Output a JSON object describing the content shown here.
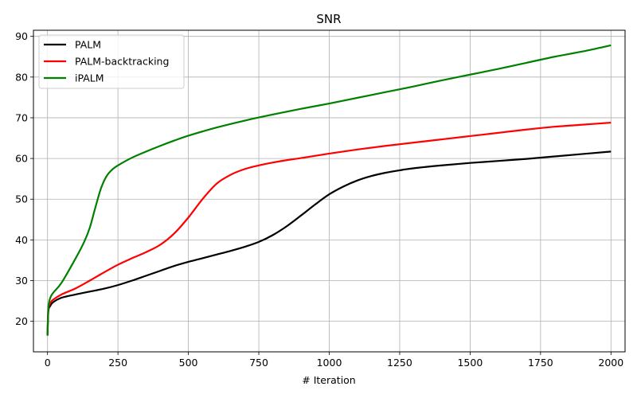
{
  "chart_data": {
    "type": "line",
    "title": "SNR",
    "xlabel": "# Iteration",
    "ylabel": "",
    "xlim": [
      -50,
      2050
    ],
    "ylim": [
      12.5,
      91.5
    ],
    "xticks": [
      0,
      250,
      500,
      750,
      1000,
      1250,
      1500,
      1750,
      2000
    ],
    "yticks": [
      20,
      30,
      40,
      50,
      60,
      70,
      80,
      90
    ],
    "grid": true,
    "legend_position": "top-left",
    "series": [
      {
        "name": "PALM",
        "color": "#000000",
        "x": [
          0,
          3,
          10,
          20,
          50,
          100,
          150,
          200,
          250,
          300,
          350,
          400,
          450,
          500,
          550,
          600,
          650,
          700,
          750,
          800,
          850,
          900,
          950,
          1000,
          1050,
          1100,
          1150,
          1200,
          1250,
          1300,
          1400,
          1500,
          1600,
          1700,
          1800,
          1900,
          2000
        ],
        "y": [
          16.5,
          22.5,
          23.8,
          24.7,
          25.8,
          26.6,
          27.3,
          28.0,
          28.9,
          30.0,
          31.2,
          32.4,
          33.6,
          34.6,
          35.5,
          36.4,
          37.3,
          38.3,
          39.5,
          41.2,
          43.4,
          46.0,
          48.7,
          51.2,
          53.1,
          54.6,
          55.7,
          56.5,
          57.1,
          57.6,
          58.3,
          58.9,
          59.4,
          59.9,
          60.5,
          61.1,
          61.7
        ]
      },
      {
        "name": "PALM-backtracking",
        "color": "#ff0000",
        "x": [
          0,
          3,
          10,
          20,
          50,
          100,
          150,
          200,
          250,
          300,
          350,
          400,
          450,
          500,
          550,
          600,
          650,
          700,
          750,
          800,
          850,
          900,
          1000,
          1100,
          1200,
          1300,
          1400,
          1500,
          1600,
          1700,
          1800,
          1900,
          2000
        ],
        "y": [
          17.0,
          23.0,
          24.5,
          25.3,
          26.6,
          28.1,
          30.0,
          32.0,
          33.9,
          35.5,
          37.0,
          38.8,
          41.6,
          45.5,
          50.0,
          53.8,
          56.0,
          57.4,
          58.3,
          59.0,
          59.6,
          60.1,
          61.2,
          62.2,
          63.1,
          63.9,
          64.7,
          65.5,
          66.3,
          67.1,
          67.8,
          68.3,
          68.8
        ]
      },
      {
        "name": "iPALM",
        "color": "#008000",
        "x": [
          0,
          3,
          10,
          20,
          50,
          100,
          130,
          150,
          170,
          190,
          210,
          230,
          250,
          300,
          350,
          400,
          450,
          500,
          600,
          700,
          800,
          900,
          1000,
          1100,
          1200,
          1300,
          1400,
          1500,
          1600,
          1700,
          1800,
          1900,
          2000
        ],
        "y": [
          16.5,
          23.5,
          25.8,
          27.0,
          29.5,
          35.5,
          39.5,
          43.0,
          48.0,
          52.7,
          55.7,
          57.3,
          58.3,
          60.2,
          61.7,
          63.1,
          64.4,
          65.6,
          67.6,
          69.3,
          70.8,
          72.2,
          73.5,
          74.9,
          76.3,
          77.7,
          79.2,
          80.6,
          82.0,
          83.5,
          85.0,
          86.3,
          87.8
        ]
      }
    ]
  }
}
